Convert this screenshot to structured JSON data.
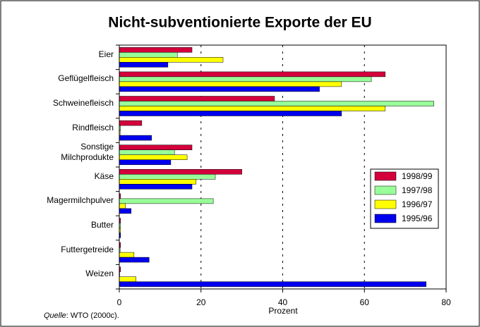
{
  "chart_data": {
    "type": "hbar",
    "title": "Nicht-subventionierte Exporte der EU",
    "xlabel": "Prozent",
    "source_label": "Quelle",
    "source_text": ": WTO (2000c).",
    "categories": [
      "Eier",
      "Geflügelfleisch",
      "Schweinefleisch",
      "Rindfleisch",
      "Sonstige\nMilchprodukte",
      "Käse",
      "Magermilchpulver",
      "Butter",
      "Futtergetreide",
      "Weizen"
    ],
    "series": [
      {
        "name": "1998/99",
        "color": "#d4003c",
        "values": [
          17.8,
          65.1,
          38,
          5.5,
          17.8,
          30,
          0.3,
          0.3,
          0.3,
          0.3
        ]
      },
      {
        "name": "1997/98",
        "color": "#99ff99",
        "values": [
          14.2,
          61.7,
          77,
          0.3,
          13.5,
          23.5,
          23,
          0.3,
          0.2,
          0.1
        ]
      },
      {
        "name": "1996/97",
        "color": "#ffff00",
        "values": [
          25.4,
          54.4,
          65.1,
          0.2,
          16.6,
          18.8,
          1.5,
          0.3,
          3.6,
          4.1
        ]
      },
      {
        "name": "1995/96",
        "color": "#0000ee",
        "values": [
          11.9,
          49,
          54.4,
          7.9,
          12.6,
          17.8,
          2.9,
          0.3,
          7.3,
          75.1
        ]
      }
    ],
    "xlim": [
      0,
      80
    ],
    "xticks": [
      0,
      20,
      40,
      60,
      80
    ],
    "grid": true
  }
}
